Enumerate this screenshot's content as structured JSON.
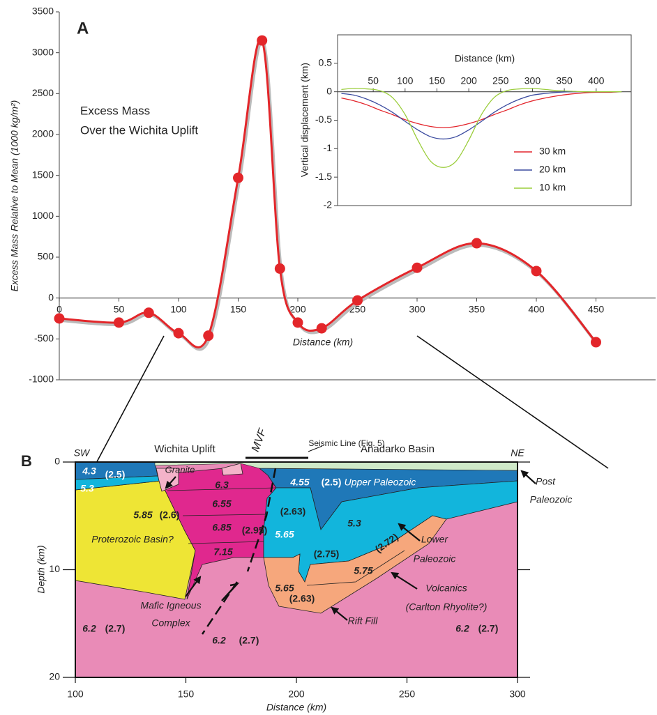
{
  "chart_data": [
    {
      "type": "line",
      "panel_label": "A",
      "annotations": [
        "Excess Mass",
        "Over the Wichita Uplift"
      ],
      "xlabel": "Distance (km)",
      "ylabel": "Excess Mass Relative to Mean (1000 kg/m²)",
      "x": [
        0,
        50,
        75,
        100,
        125,
        150,
        170,
        185,
        200,
        220,
        250,
        300,
        350,
        400,
        450
      ],
      "values": [
        -250,
        -300,
        -180,
        -430,
        -460,
        1470,
        3150,
        360,
        -300,
        -370,
        -30,
        370,
        670,
        330,
        -540
      ],
      "color": "#e3262a",
      "markers": true,
      "xlim": [
        0,
        500
      ],
      "ylim": [
        -1000,
        3500
      ],
      "xticks": [
        0,
        50,
        100,
        150,
        200,
        250,
        300,
        350,
        400,
        450
      ],
      "yticks": [
        -1000,
        -500,
        0,
        500,
        1000,
        1500,
        2000,
        2500,
        3000,
        3500
      ]
    },
    {
      "type": "line",
      "xlabel": "Distance (km)",
      "ylabel": "Vertical displacement (km)",
      "x": [
        0,
        20,
        40,
        60,
        80,
        100,
        120,
        140,
        160,
        180,
        200,
        220,
        240,
        260,
        280,
        300,
        320,
        340,
        360,
        380,
        400,
        420,
        440
      ],
      "series": [
        {
          "name": "30 km",
          "color": "#e3242b",
          "values": [
            -0.11,
            -0.16,
            -0.23,
            -0.32,
            -0.4,
            -0.49,
            -0.56,
            -0.61,
            -0.63,
            -0.61,
            -0.56,
            -0.49,
            -0.4,
            -0.32,
            -0.23,
            -0.16,
            -0.11,
            -0.07,
            -0.04,
            -0.02,
            -0.01,
            -0.01,
            0
          ]
        },
        {
          "name": "20 km",
          "color": "#3a4a9f",
          "values": [
            -0.03,
            -0.06,
            -0.13,
            -0.23,
            -0.36,
            -0.52,
            -0.67,
            -0.79,
            -0.83,
            -0.79,
            -0.67,
            -0.52,
            -0.36,
            -0.23,
            -0.13,
            -0.06,
            -0.03,
            -0.01,
            0,
            0,
            0,
            0,
            0
          ]
        },
        {
          "name": "10 km",
          "color": "#9acd3a",
          "values": [
            0.04,
            0.06,
            0.05,
            0.02,
            -0.1,
            -0.4,
            -0.85,
            -1.22,
            -1.33,
            -1.22,
            -0.85,
            -0.4,
            -0.1,
            0.02,
            0.05,
            0.06,
            0.04,
            0.02,
            0.01,
            0,
            0,
            0,
            0
          ]
        }
      ],
      "markers": false,
      "legend": "lower right",
      "xlim": [
        -6,
        455
      ],
      "ylim": [
        -2,
        1
      ],
      "xticks": [
        50,
        100,
        150,
        200,
        250,
        300,
        350,
        400
      ],
      "yticks": [
        -2,
        -1.5,
        -1,
        -0.5,
        0,
        0.5
      ]
    }
  ],
  "cross_section": {
    "panel_label": "B",
    "sw": "SW",
    "ne": "NE",
    "left_title": "Wichita Uplift",
    "right_title": "Anadarko Basin",
    "fault": "MVF",
    "seismic": "Seismic Line (Fig. 5)",
    "granite": "Granite",
    "xlabel": "Distance (km)",
    "ylabel": "Depth (km)",
    "xlim": [
      100,
      300
    ],
    "ylim": [
      0,
      20
    ],
    "xticks": [
      100,
      150,
      200,
      250,
      300
    ],
    "yticks": [
      0,
      10,
      20
    ],
    "labels": [
      "4.3",
      "(2.5)",
      "5.3",
      "6.3",
      "6.55",
      "6.85",
      "(2.95)",
      "7.15",
      "5.85",
      "(2.6)",
      "Proterozoic Basin?",
      "4.55",
      "(2.5)",
      "Upper Paleozoic",
      "(2.63)",
      "5.65",
      "5.3",
      "(2.75)",
      "(2.72)",
      "5.75",
      "5.65",
      "(2.63)",
      "Lower",
      "Paleozoic",
      "Volcanics",
      "(Carlton Rhyolite?)",
      "Rift Fill",
      "Mafic Igneous",
      "Complex",
      "Post",
      "Paleozoic",
      "6.2",
      "(2.7)",
      "6.2",
      "(2.7)",
      "6.2",
      "(2.7)"
    ]
  }
}
